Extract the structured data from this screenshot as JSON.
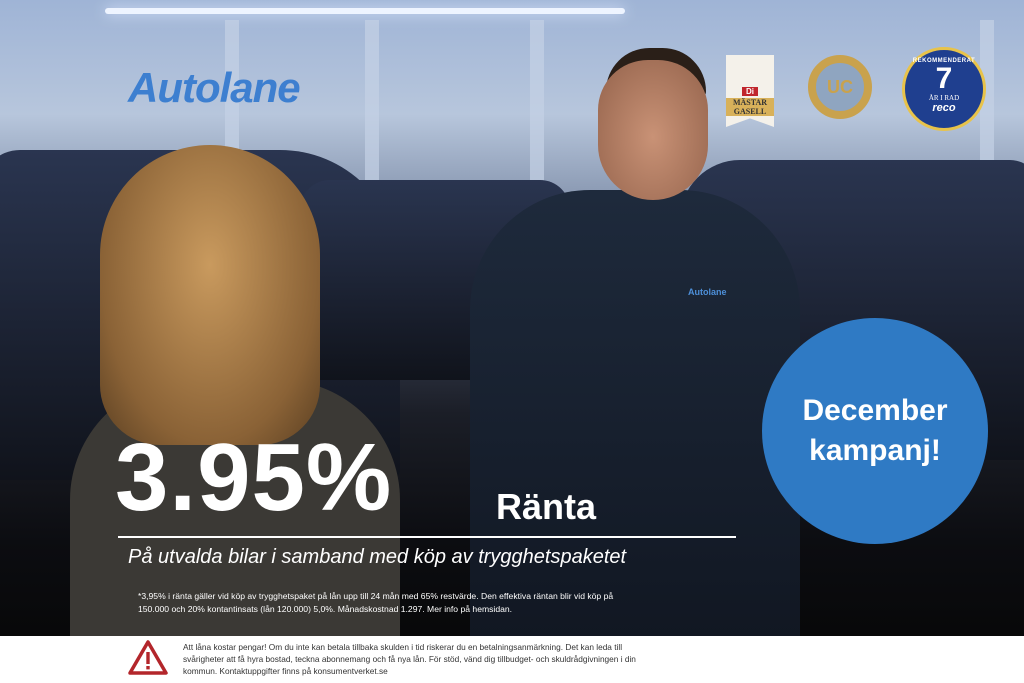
{
  "brand": {
    "logo": "Autolane",
    "shirt_logo": "Autolane"
  },
  "badges": {
    "gasell": {
      "top": "Di",
      "label": "MÄSTAR GASELL"
    },
    "uc": {
      "label": "UC"
    },
    "reco": {
      "top": "REKOMMENDERAT",
      "number": "7",
      "years": "ÅR I RAD",
      "brand": "reco"
    }
  },
  "campaign": {
    "line1": "December",
    "line2": "kampanj!",
    "color": "#2f7ac4"
  },
  "offer": {
    "rate": "3.95%",
    "rate_label": "Ränta",
    "subtitle": "På utvalda bilar i samband med köp av trygghetspaketet"
  },
  "fine_print": "*3,95% i ränta gäller vid köp av trygghetspaket på lån upp till 24 mån med 65% restvärde. Den effektiva räntan blir vid köp på 150.000 och 20% kontantinsats (lån 120.000) 5,0%. Månadskostnad 1.297. Mer info på hemsidan.",
  "warning": {
    "icon": "warning-triangle-icon",
    "text": "Att låna kostar pengar! Om du inte kan betala tillbaka skulden i tid riskerar du en betalningsanmärkning. Det kan leda till svårigheter att få hyra bostad, teckna abonnemang och få nya lån. För stöd, vänd dig tillbudget- och skuldrådgivningen i din kommun. Kontaktuppgifter finns på konsumentverket.se",
    "color": "#b3262b"
  }
}
